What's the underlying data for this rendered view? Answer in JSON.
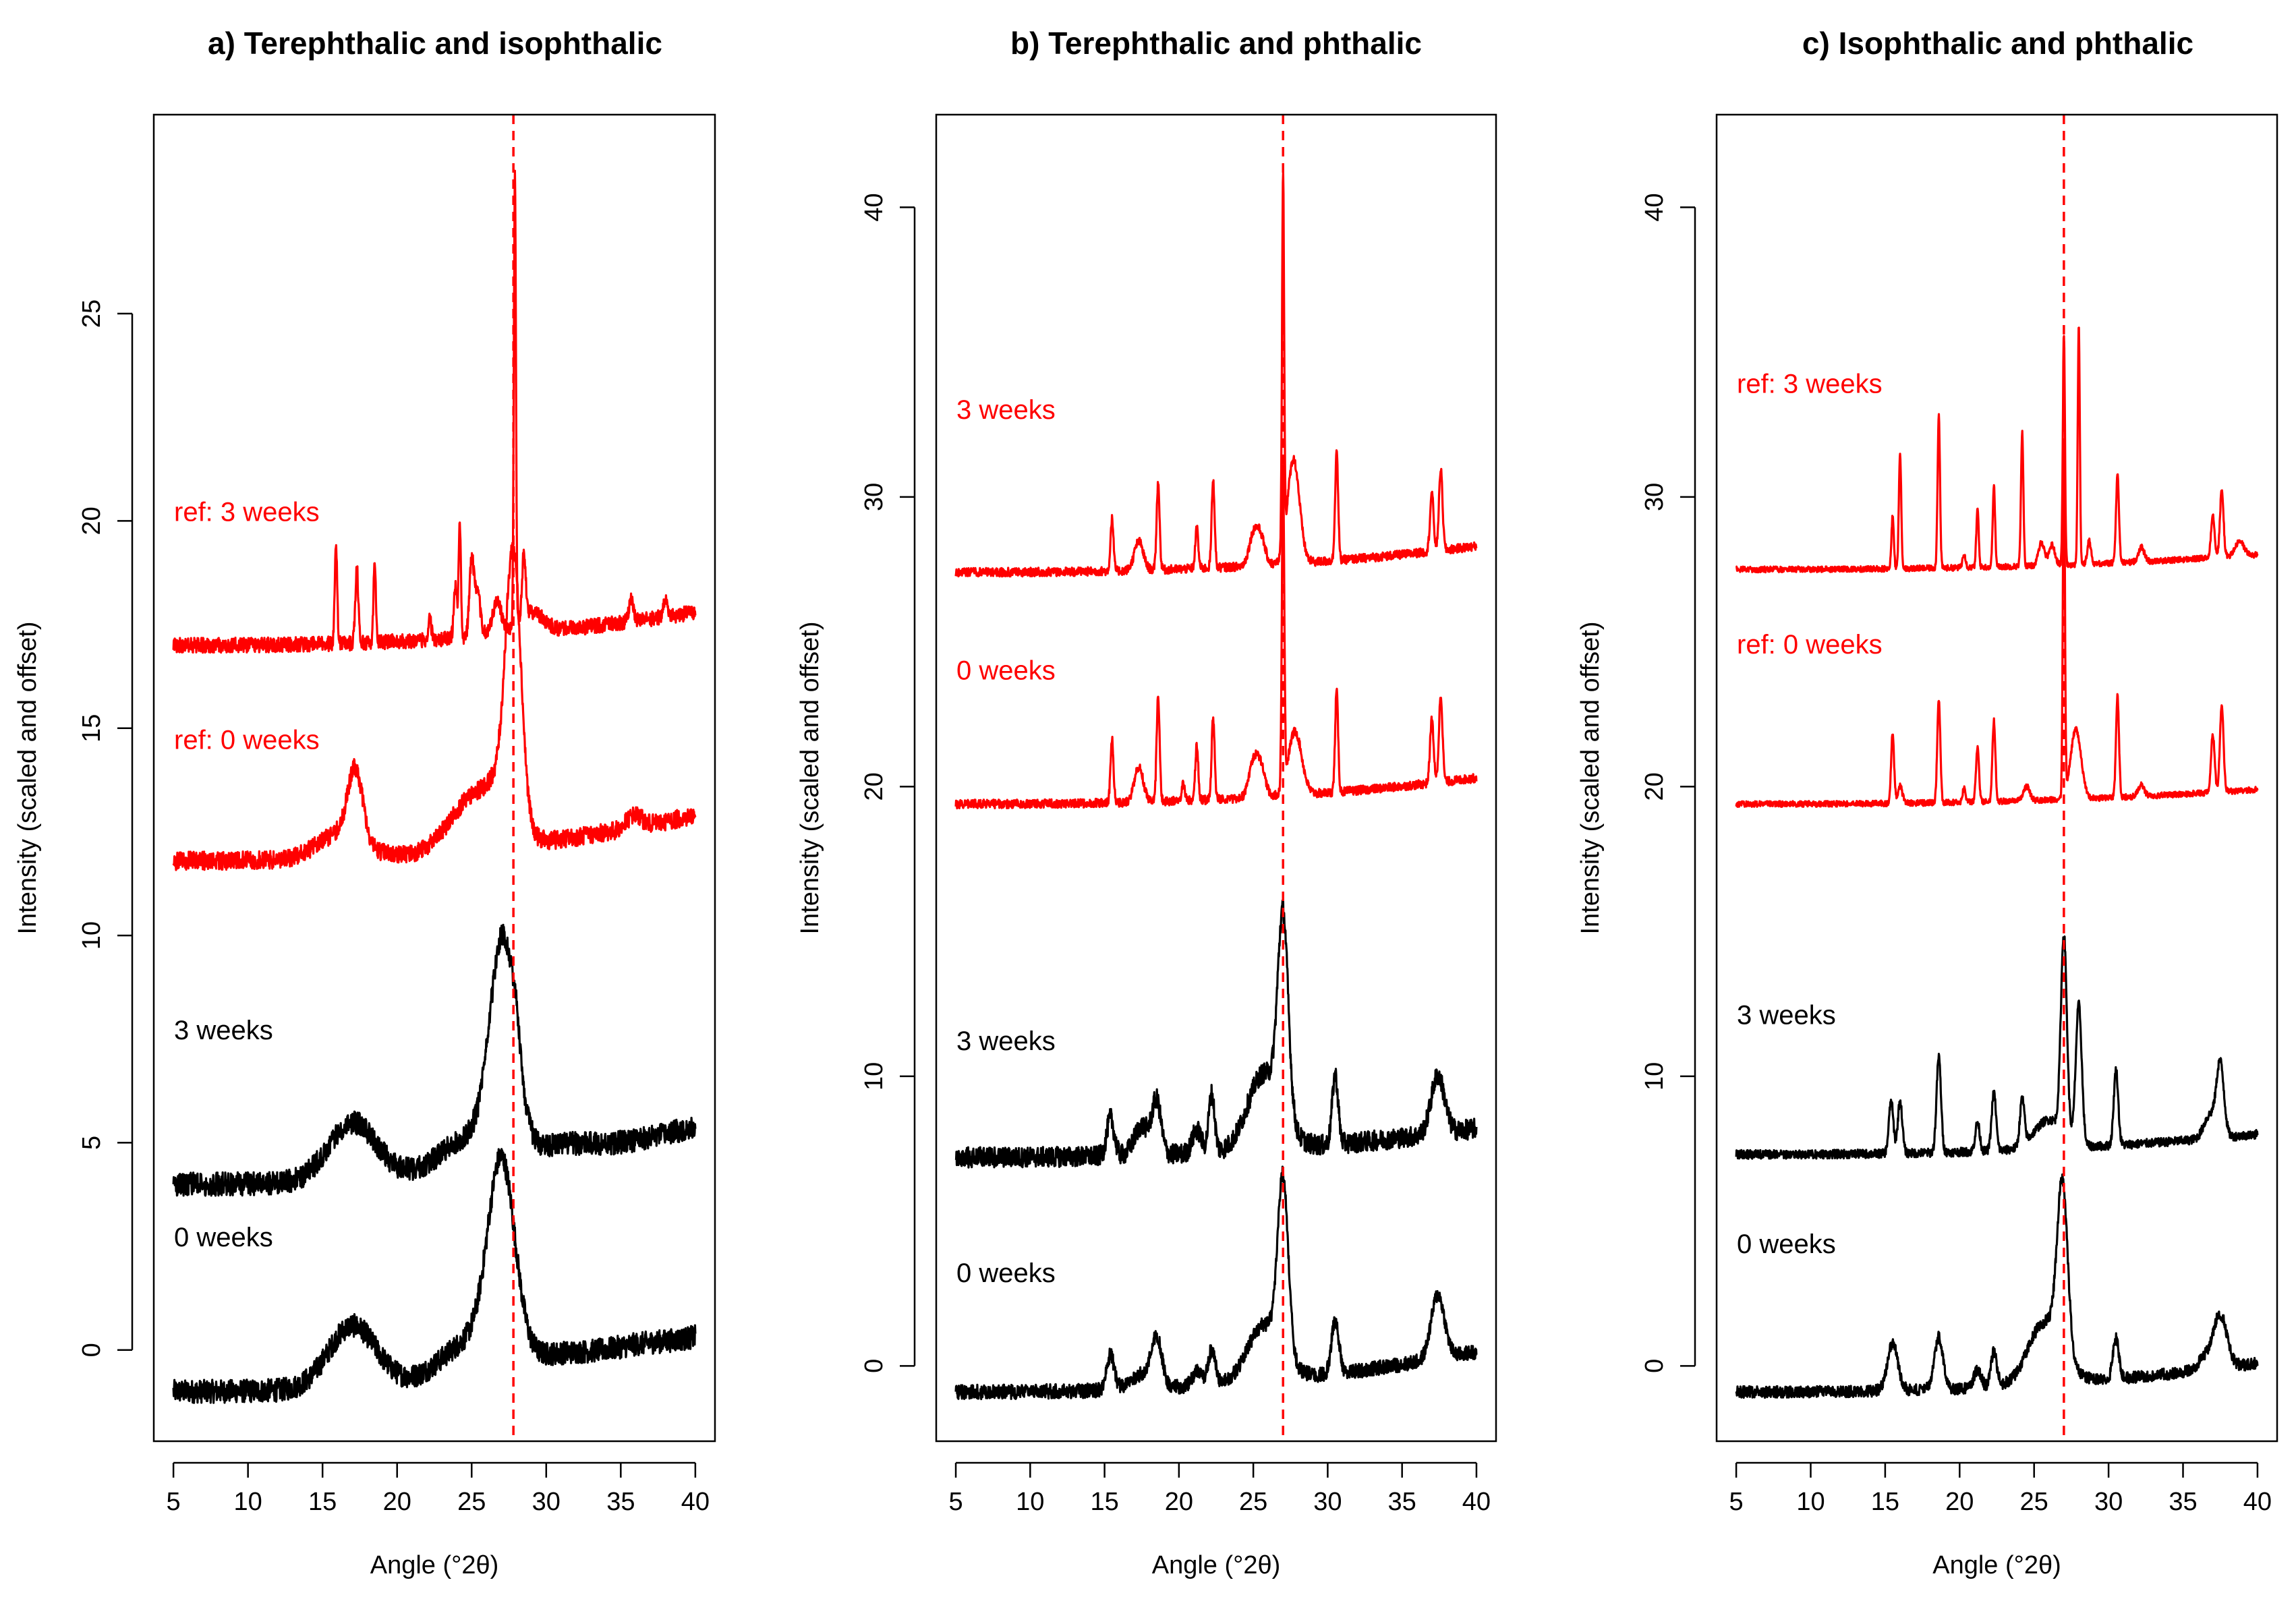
{
  "chart_data": [
    {
      "type": "line",
      "title": "a) Terephthalic and isophthalic",
      "xlabel": "Angle (°2θ)",
      "ylabel": "Intensity (scaled and offset)",
      "xlim": [
        5,
        40
      ],
      "ylim": [
        -2.2,
        29.8
      ],
      "xticks": [
        5,
        10,
        15,
        20,
        25,
        30,
        35,
        40
      ],
      "yticks": [
        0,
        5,
        10,
        15,
        20,
        25
      ],
      "refline_x": 27.8,
      "colors": {
        "sample": "#000000",
        "reference": "#ff0000"
      },
      "series": [
        {
          "name": "0 weeks",
          "label_y": 2.5,
          "color": "#000000",
          "base": -1.0,
          "end": 0.3,
          "noise": 0.28,
          "peaks": [
            [
              17.0,
              1.5,
              1.6
            ],
            [
              27.0,
              4.6,
              0.9
            ],
            [
              25.0,
              0.9,
              2.0
            ],
            [
              30.5,
              0.3,
              2.5
            ],
            [
              36.0,
              0.15,
              2.0
            ]
          ]
        },
        {
          "name": "3 weeks",
          "label_y": 7.5,
          "color": "#000000",
          "base": 4.0,
          "end": 5.4,
          "noise": 0.28,
          "peaks": [
            [
              17.0,
              1.4,
              1.6
            ],
            [
              27.1,
              5.0,
              0.85
            ],
            [
              25.0,
              0.8,
              2.0
            ],
            [
              28.0,
              0.6,
              0.3
            ],
            [
              30.5,
              0.3,
              2.5
            ]
          ]
        },
        {
          "name": "ref: 0 weeks",
          "label_y": 14.5,
          "color": "#ff0000",
          "base": 11.8,
          "end": 12.9,
          "noise": 0.22,
          "peaks": [
            [
              17.2,
              1.7,
              0.5
            ],
            [
              16.2,
              0.6,
              1.5
            ],
            [
              25.0,
              1.2,
              1.5
            ],
            [
              27.8,
              6.0,
              0.5
            ],
            [
              27.2,
              1.2,
              1.0
            ],
            [
              35.9,
              0.3,
              0.5
            ]
          ]
        },
        {
          "name": "ref: 3 weeks",
          "label_y": 20.0,
          "color": "#ff0000",
          "base": 17.0,
          "end": 17.8,
          "noise": 0.18,
          "peaks": [
            [
              15.9,
              2.5,
              0.08
            ],
            [
              17.3,
              1.8,
              0.1
            ],
            [
              18.5,
              2.0,
              0.08
            ],
            [
              23.9,
              1.3,
              0.1
            ],
            [
              24.2,
              2.7,
              0.08
            ],
            [
              25.0,
              1.8,
              0.15
            ],
            [
              25.4,
              1.0,
              0.2
            ],
            [
              26.7,
              0.8,
              0.3
            ],
            [
              27.9,
              11.0,
              0.07
            ],
            [
              28.5,
              1.5,
              0.12
            ],
            [
              22.2,
              0.5,
              0.1
            ],
            [
              35.7,
              0.5,
              0.15
            ],
            [
              38.0,
              0.4,
              0.15
            ],
            [
              29.0,
              0.5,
              0.8
            ]
          ]
        }
      ]
    },
    {
      "type": "line",
      "title": "b) Terephthalic and phthalic",
      "xlabel": "Angle (°2θ)",
      "ylabel": "Intensity (scaled and offset)",
      "xlim": [
        5,
        40
      ],
      "ylim": [
        -2.6,
        43.2
      ],
      "xticks": [
        5,
        10,
        15,
        20,
        25,
        30,
        35,
        40
      ],
      "yticks": [
        0,
        10,
        20,
        30,
        40
      ],
      "refline_x": 27.0,
      "colors": {
        "sample": "#000000",
        "reference": "#ff0000"
      },
      "series": [
        {
          "name": "0 weeks",
          "label_y": 2.9,
          "color": "#000000",
          "base": -0.9,
          "end": 0.5,
          "noise": 0.25,
          "peaks": [
            [
              15.4,
              1.2,
              0.25
            ],
            [
              18.5,
              1.6,
              0.35
            ],
            [
              21.2,
              0.5,
              0.3
            ],
            [
              22.2,
              1.2,
              0.25
            ],
            [
              25.5,
              0.8,
              1.0
            ],
            [
              27.0,
              6.0,
              0.35
            ],
            [
              26.0,
              1.2,
              1.2
            ],
            [
              30.5,
              1.8,
              0.25
            ],
            [
              37.4,
              2.2,
              0.45
            ],
            [
              17.5,
              0.5,
              0.8
            ]
          ]
        },
        {
          "name": "3 weeks",
          "label_y": 10.9,
          "color": "#000000",
          "base": 7.2,
          "end": 8.2,
          "noise": 0.35,
          "peaks": [
            [
              15.4,
              1.3,
              0.25
            ],
            [
              17.5,
              1.0,
              0.5
            ],
            [
              18.5,
              1.8,
              0.3
            ],
            [
              21.2,
              0.8,
              0.3
            ],
            [
              22.2,
              2.0,
              0.2
            ],
            [
              25.5,
              1.2,
              1.0
            ],
            [
              27.0,
              6.8,
              0.35
            ],
            [
              26.0,
              1.5,
              1.2
            ],
            [
              30.5,
              2.4,
              0.2
            ],
            [
              37.4,
              2.0,
              0.45
            ]
          ]
        },
        {
          "name": "0 weeks",
          "label_y": 23.7,
          "color": "#ff0000",
          "base": 19.4,
          "end": 20.3,
          "noise": 0.15,
          "peaks": [
            [
              15.5,
              2.2,
              0.1
            ],
            [
              17.3,
              1.2,
              0.3
            ],
            [
              18.6,
              3.6,
              0.1
            ],
            [
              20.3,
              0.6,
              0.1
            ],
            [
              21.2,
              1.9,
              0.1
            ],
            [
              22.3,
              2.8,
              0.1
            ],
            [
              25.0,
              1.1,
              0.3
            ],
            [
              25.5,
              1.0,
              0.3
            ],
            [
              27.0,
              11.0,
              0.08
            ],
            [
              27.8,
              2.2,
              0.45
            ],
            [
              30.6,
              3.5,
              0.1
            ],
            [
              37.0,
              2.2,
              0.12
            ],
            [
              37.6,
              3.0,
              0.12
            ]
          ]
        },
        {
          "name": "3 weeks",
          "label_y": 32.7,
          "color": "#ff0000",
          "base": 27.4,
          "end": 28.3,
          "noise": 0.15,
          "peaks": [
            [
              15.5,
              1.8,
              0.1
            ],
            [
              17.3,
              1.0,
              0.3
            ],
            [
              18.6,
              3.0,
              0.1
            ],
            [
              21.2,
              1.4,
              0.1
            ],
            [
              22.3,
              3.0,
              0.1
            ],
            [
              25.0,
              1.0,
              0.3
            ],
            [
              25.5,
              0.9,
              0.3
            ],
            [
              27.0,
              12.8,
              0.07
            ],
            [
              27.7,
              3.6,
              0.4
            ],
            [
              30.6,
              3.8,
              0.1
            ],
            [
              37.0,
              2.0,
              0.12
            ],
            [
              37.6,
              2.8,
              0.12
            ]
          ]
        }
      ]
    },
    {
      "type": "line",
      "title": "c) Isophthalic and phthalic",
      "xlabel": "Angle (°2θ)",
      "ylabel": "Intensity (scaled and offset)",
      "xlim": [
        5,
        40
      ],
      "ylim": [
        -2.6,
        43.2
      ],
      "xticks": [
        5,
        10,
        15,
        20,
        25,
        30,
        35,
        40
      ],
      "yticks": [
        0,
        10,
        20,
        30,
        40
      ],
      "refline_x": 27.0,
      "colors": {
        "sample": "#000000",
        "reference": "#ff0000"
      },
      "series": [
        {
          "name": "0 weeks",
          "label_y": 3.9,
          "color": "#000000",
          "base": -0.9,
          "end": 0.1,
          "noise": 0.2,
          "peaks": [
            [
              15.5,
              1.6,
              0.35
            ],
            [
              18.6,
              1.8,
              0.3
            ],
            [
              21.2,
              0.6,
              0.25
            ],
            [
              22.3,
              1.2,
              0.2
            ],
            [
              25.5,
              1.0,
              1.0
            ],
            [
              26.9,
              5.8,
              0.35
            ],
            [
              26.0,
              1.2,
              1.2
            ],
            [
              30.5,
              1.4,
              0.2
            ],
            [
              37.5,
              1.8,
              0.45
            ],
            [
              36.5,
              0.4,
              0.5
            ]
          ]
        },
        {
          "name": "3 weeks",
          "label_y": 11.8,
          "color": "#000000",
          "base": 7.3,
          "end": 8.0,
          "noise": 0.15,
          "peaks": [
            [
              15.4,
              1.8,
              0.15
            ],
            [
              16.0,
              1.8,
              0.15
            ],
            [
              18.6,
              3.3,
              0.15
            ],
            [
              21.2,
              1.0,
              0.15
            ],
            [
              22.3,
              2.0,
              0.15
            ],
            [
              24.2,
              1.6,
              0.15
            ],
            [
              27.0,
              6.8,
              0.2
            ],
            [
              28.0,
              4.8,
              0.2
            ],
            [
              30.5,
              2.6,
              0.15
            ],
            [
              37.5,
              2.5,
              0.25
            ],
            [
              36.8,
              0.8,
              0.4
            ],
            [
              26.0,
              1.0,
              1.0
            ]
          ]
        },
        {
          "name": "ref: 0 weeks",
          "label_y": 24.6,
          "color": "#ff0000",
          "base": 19.4,
          "end": 19.9,
          "noise": 0.1,
          "peaks": [
            [
              15.5,
              2.4,
              0.1
            ],
            [
              16.0,
              0.6,
              0.15
            ],
            [
              18.6,
              3.6,
              0.1
            ],
            [
              20.3,
              0.5,
              0.1
            ],
            [
              21.2,
              1.9,
              0.1
            ],
            [
              22.3,
              2.8,
              0.1
            ],
            [
              24.5,
              0.5,
              0.2
            ],
            [
              27.0,
              12.0,
              0.07
            ],
            [
              27.8,
              2.4,
              0.35
            ],
            [
              30.6,
              3.5,
              0.1
            ],
            [
              37.0,
              2.0,
              0.12
            ],
            [
              37.6,
              3.0,
              0.12
            ],
            [
              32.2,
              0.4,
              0.2
            ]
          ]
        },
        {
          "name": "ref: 3 weeks",
          "label_y": 33.6,
          "color": "#ff0000",
          "base": 27.5,
          "end": 28.0,
          "noise": 0.1,
          "peaks": [
            [
              15.5,
              1.8,
              0.08
            ],
            [
              16.0,
              4.0,
              0.08
            ],
            [
              18.6,
              5.3,
              0.08
            ],
            [
              20.3,
              0.5,
              0.1
            ],
            [
              21.2,
              2.0,
              0.08
            ],
            [
              22.3,
              2.8,
              0.08
            ],
            [
              24.2,
              4.6,
              0.08
            ],
            [
              25.5,
              0.8,
              0.2
            ],
            [
              26.2,
              0.7,
              0.2
            ],
            [
              27.0,
              8.0,
              0.07
            ],
            [
              28.0,
              8.2,
              0.07
            ],
            [
              28.7,
              0.8,
              0.12
            ],
            [
              30.6,
              3.0,
              0.1
            ],
            [
              32.2,
              0.5,
              0.2
            ],
            [
              37.0,
              1.5,
              0.12
            ],
            [
              37.6,
              2.3,
              0.12
            ],
            [
              38.8,
              0.5,
              0.3
            ]
          ]
        }
      ]
    }
  ]
}
